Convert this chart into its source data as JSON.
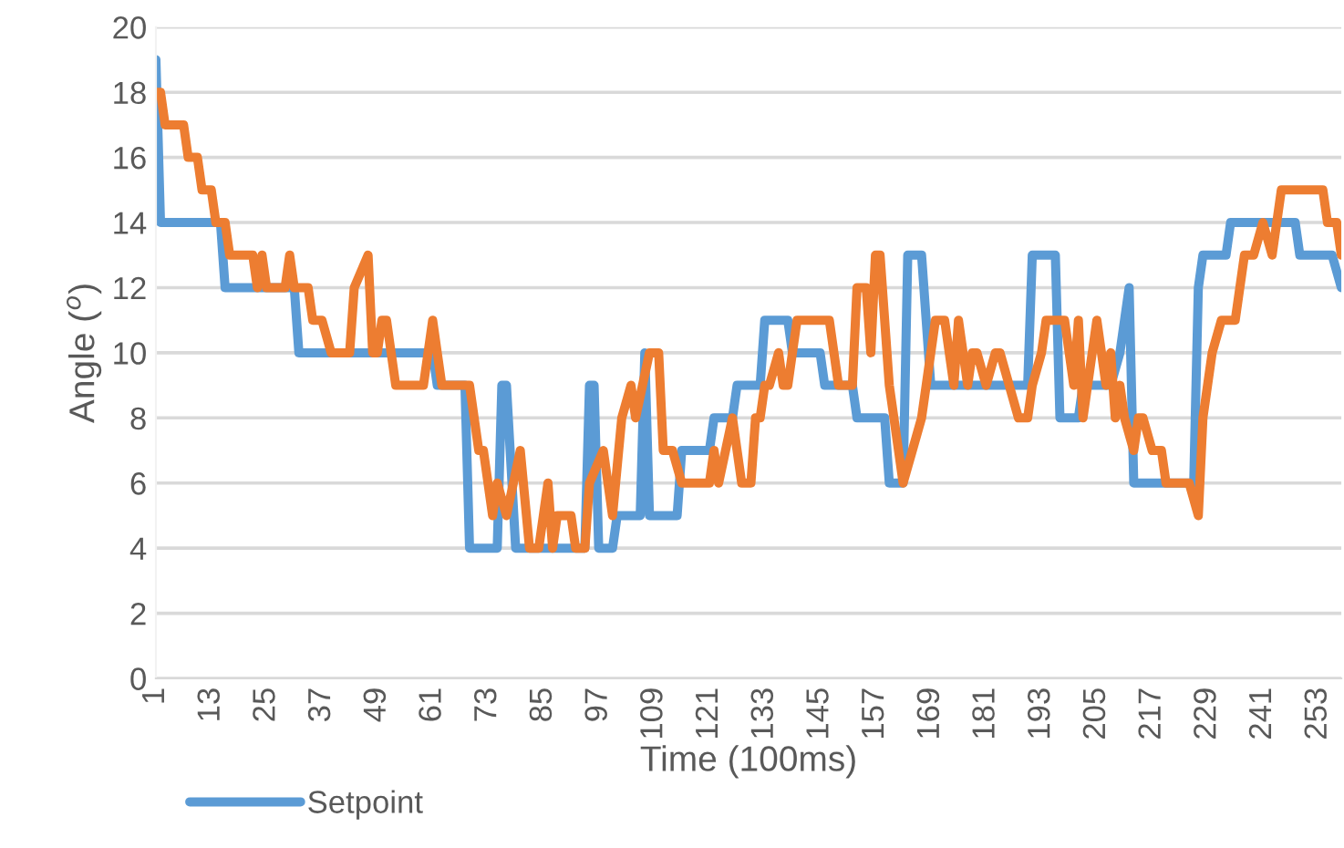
{
  "chart_data": {
    "type": "line",
    "xlabel": "Time (100ms)",
    "ylabel": "Angle ($^{o}$)",
    "xlim": [
      1,
      258
    ],
    "xticks": [
      1,
      13,
      25,
      37,
      49,
      61,
      73,
      85,
      97,
      109,
      121,
      133,
      145,
      157,
      169,
      181,
      193,
      205,
      217,
      229,
      241,
      253
    ],
    "ylim": [
      0,
      20
    ],
    "yticks": [
      0,
      2,
      4,
      6,
      8,
      10,
      12,
      14,
      16,
      18,
      20
    ],
    "grid": "y",
    "legend": "bottom left",
    "marker": "none",
    "line_style": "solid",
    "series": [
      {
        "name": "Setpoint",
        "color": "#5b9bd5",
        "x": [
          1,
          2,
          15,
          16,
          31,
          32,
          61,
          62,
          68,
          69,
          75,
          76,
          77,
          79,
          94,
          95,
          96,
          97,
          100,
          101,
          106,
          107,
          108,
          114,
          115,
          121,
          122,
          126,
          127,
          132,
          133,
          138,
          139,
          145,
          146,
          152,
          153,
          159,
          160,
          163,
          164,
          167,
          168,
          169,
          190,
          191,
          196,
          197,
          201,
          202,
          208,
          210,
          212,
          213,
          226,
          227,
          228,
          233,
          234,
          248,
          249,
          256,
          258
        ],
        "values": [
          19,
          14,
          14,
          12,
          12,
          10,
          10,
          9,
          9,
          4,
          4,
          9,
          9,
          4,
          4,
          9,
          9,
          4,
          4,
          5,
          5,
          10,
          5,
          5,
          7,
          7,
          8,
          8,
          9,
          9,
          11,
          11,
          10,
          10,
          9,
          9,
          8,
          8,
          6,
          6,
          13,
          13,
          11,
          9,
          9,
          13,
          13,
          8,
          8,
          9,
          9,
          10,
          12,
          6,
          6,
          12,
          13,
          13,
          14,
          14,
          13,
          13,
          12
        ]
      },
      {
        "color": "#ed7d31",
        "x": [
          1,
          2,
          3,
          7,
          8,
          10,
          11,
          13,
          14,
          16,
          17,
          22,
          23,
          24,
          25,
          29,
          30,
          31,
          34,
          35,
          37,
          39,
          43,
          44,
          47,
          48,
          49,
          50,
          51,
          52,
          53,
          59,
          61,
          63,
          69,
          71,
          72,
          74,
          75,
          77,
          80,
          82,
          84,
          86,
          87,
          88,
          91,
          92,
          94,
          95,
          98,
          100,
          102,
          104,
          105,
          108,
          110,
          111,
          113,
          115,
          121,
          122,
          123,
          126,
          128,
          130,
          131,
          132,
          133,
          134,
          136,
          137,
          138,
          140,
          147,
          149,
          152,
          153,
          155,
          156,
          157,
          158,
          160,
          163,
          165,
          167,
          170,
          172,
          174,
          175,
          177,
          178,
          179,
          181,
          183,
          184,
          186,
          188,
          190,
          191,
          193,
          194,
          196,
          198,
          200,
          201,
          202,
          205,
          207,
          208,
          209,
          210,
          211,
          213,
          214,
          215,
          217,
          219,
          220,
          225,
          227,
          228,
          230,
          232,
          235,
          237,
          239,
          241,
          243,
          245,
          254,
          255,
          257,
          258
        ],
        "values": [
          18,
          18,
          17,
          17,
          16,
          16,
          15,
          15,
          14,
          14,
          13,
          13,
          12,
          13,
          12,
          12,
          13,
          12,
          12,
          11,
          11,
          10,
          10,
          12,
          13,
          10,
          10,
          11,
          11,
          10,
          9,
          9,
          11,
          9,
          9,
          7,
          7,
          5,
          6,
          5,
          7,
          4,
          4,
          6,
          4,
          5,
          5,
          4,
          4,
          6,
          7,
          5,
          8,
          9,
          8,
          10,
          10,
          7,
          7,
          6,
          6,
          7,
          6,
          8,
          6,
          6,
          8,
          8,
          9,
          9,
          10,
          9,
          9,
          11,
          11,
          9,
          9,
          12,
          12,
          10,
          13,
          13,
          9,
          6,
          7,
          8,
          11,
          11,
          9,
          11,
          9,
          10,
          10,
          9,
          10,
          10,
          9,
          8,
          8,
          9,
          10,
          11,
          11,
          11,
          9,
          11,
          8,
          11,
          9,
          10,
          8,
          9,
          8,
          7,
          8,
          8,
          7,
          7,
          6,
          6,
          5,
          8,
          10,
          11,
          11,
          13,
          13,
          14,
          13,
          15,
          15,
          14,
          14,
          13
        ]
      }
    ]
  }
}
